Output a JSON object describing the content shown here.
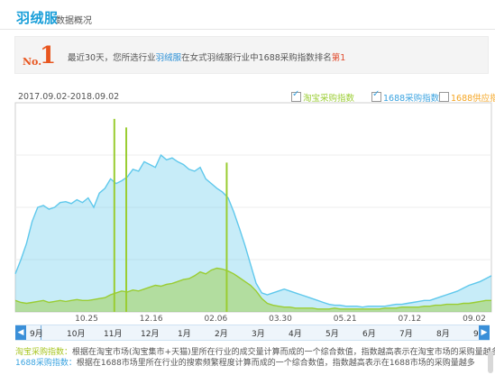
{
  "header": {
    "brand": "羽绒服",
    "subtitle": "数据概况"
  },
  "rank": {
    "no_label": "No.",
    "no_value": "1",
    "text_before": "最近30天，您所选行业",
    "category": "羽绒服",
    "text_middle": "在女式羽绒服行业中1688采购指数排名",
    "rank_text": "第1"
  },
  "chart_data": {
    "type": "area",
    "date_range_label": "2017.09.02-2018.09.02",
    "x_tick_labels": [
      "10.25",
      "12.16",
      "02.06",
      "03.30",
      "05.21",
      "07.12",
      "09.02"
    ],
    "series": [
      {
        "name": "淘宝采购指数",
        "checked": true,
        "color": "#9acd32",
        "values": [
          12,
          10,
          9,
          10,
          11,
          12,
          10,
          11,
          12,
          11,
          12,
          13,
          12,
          12,
          13,
          14,
          15,
          18,
          20,
          22,
          21,
          23,
          22,
          24,
          26,
          28,
          27,
          29,
          30,
          32,
          34,
          35,
          38,
          42,
          40,
          44,
          46,
          45,
          43,
          40,
          36,
          32,
          28,
          22,
          14,
          9,
          7,
          6,
          5,
          5,
          4,
          4,
          4,
          4,
          3,
          3,
          3,
          4,
          3,
          3,
          3,
          3,
          3,
          3,
          3,
          3,
          4,
          4,
          4,
          5,
          5,
          5,
          5,
          6,
          6,
          7,
          7,
          8,
          8,
          8,
          9,
          9,
          10,
          11,
          12,
          12
        ]
      },
      {
        "name": "1688采购指数",
        "checked": true,
        "color": "#5fc8ec",
        "values": [
          40,
          55,
          72,
          95,
          110,
          112,
          108,
          110,
          115,
          116,
          114,
          118,
          115,
          120,
          110,
          125,
          130,
          140,
          135,
          138,
          142,
          150,
          148,
          158,
          155,
          152,
          165,
          160,
          162,
          158,
          155,
          150,
          148,
          152,
          140,
          135,
          130,
          126,
          120,
          105,
          88,
          70,
          50,
          30,
          20,
          18,
          20,
          22,
          24,
          22,
          20,
          18,
          16,
          14,
          12,
          10,
          8,
          7,
          7,
          6,
          6,
          6,
          5,
          6,
          6,
          6,
          6,
          7,
          8,
          8,
          9,
          10,
          11,
          12,
          12,
          14,
          16,
          18,
          20,
          22,
          25,
          28,
          30,
          32,
          35,
          38
        ]
      },
      {
        "name": "1688供应指数",
        "checked": false,
        "color": "#f5a623",
        "values": []
      }
    ],
    "spikes": [
      {
        "position": 0.208,
        "value": 203
      },
      {
        "position": 0.233,
        "value": 194
      },
      {
        "position": 0.444,
        "value": 157
      }
    ],
    "ylim": [
      0,
      220
    ],
    "legend_position": "top-right"
  },
  "navigator": {
    "left_arrow": "◀",
    "right_arrow": "▶",
    "months": [
      "9月",
      "10月",
      "11月",
      "12月",
      "1月",
      "2月",
      "3月",
      "4月",
      "5月",
      "6月",
      "7月",
      "8月",
      "9月"
    ]
  },
  "notes": [
    {
      "key": "淘宝采购指数：",
      "text": "根据在淘宝市场(淘宝集市+天猫)里所在行业的成交量计算而成的一个综合数值，指数越高表示在淘宝市场的采购量越多"
    },
    {
      "key": "1688采购指数：",
      "text": "根据在1688市场里所在行业的搜索频繁程度计算而成的一个综合数值，指数越高表示在1688市场的采购量越多"
    }
  ],
  "colors": {
    "taobao": "#9acd32",
    "alibaba": "#5fc8ec",
    "supply": "#f5a623",
    "accent": "#1a9fd9"
  }
}
